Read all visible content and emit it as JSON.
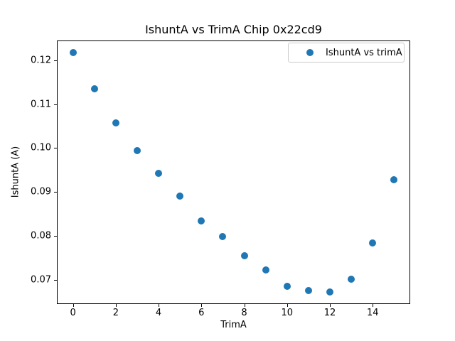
{
  "chart_data": {
    "type": "scatter",
    "title": "IshuntA vs TrimA Chip 0x22cd9",
    "xlabel": "TrimA",
    "ylabel": "IshuntA (A)",
    "legend_label": "IshuntA vs trimA",
    "legend_position": "upper right",
    "marker_color": "#1f77b4",
    "grid": false,
    "x": [
      0,
      1,
      2,
      3,
      4,
      5,
      6,
      7,
      8,
      9,
      10,
      11,
      12,
      13,
      14,
      15
    ],
    "y": [
      0.1218,
      0.1135,
      0.1057,
      0.0994,
      0.0943,
      0.0891,
      0.0834,
      0.0799,
      0.0755,
      0.0722,
      0.0686,
      0.0675,
      0.0672,
      0.0702,
      0.0784,
      0.0928
    ],
    "xlim": [
      -0.75,
      15.75
    ],
    "ylim": [
      0.0645,
      0.1245
    ],
    "xticks": [
      {
        "value": 0,
        "label": "0"
      },
      {
        "value": 2,
        "label": "2"
      },
      {
        "value": 4,
        "label": "4"
      },
      {
        "value": 6,
        "label": "6"
      },
      {
        "value": 8,
        "label": "8"
      },
      {
        "value": 10,
        "label": "10"
      },
      {
        "value": 12,
        "label": "12"
      },
      {
        "value": 14,
        "label": "14"
      }
    ],
    "yticks": [
      {
        "value": 0.12,
        "label": "0.12"
      },
      {
        "value": 0.11,
        "label": "0.11"
      },
      {
        "value": 0.1,
        "label": "0.10"
      },
      {
        "value": 0.09,
        "label": "0.09"
      },
      {
        "value": 0.08,
        "label": "0.08"
      },
      {
        "value": 0.07,
        "label": "0.07"
      }
    ]
  }
}
